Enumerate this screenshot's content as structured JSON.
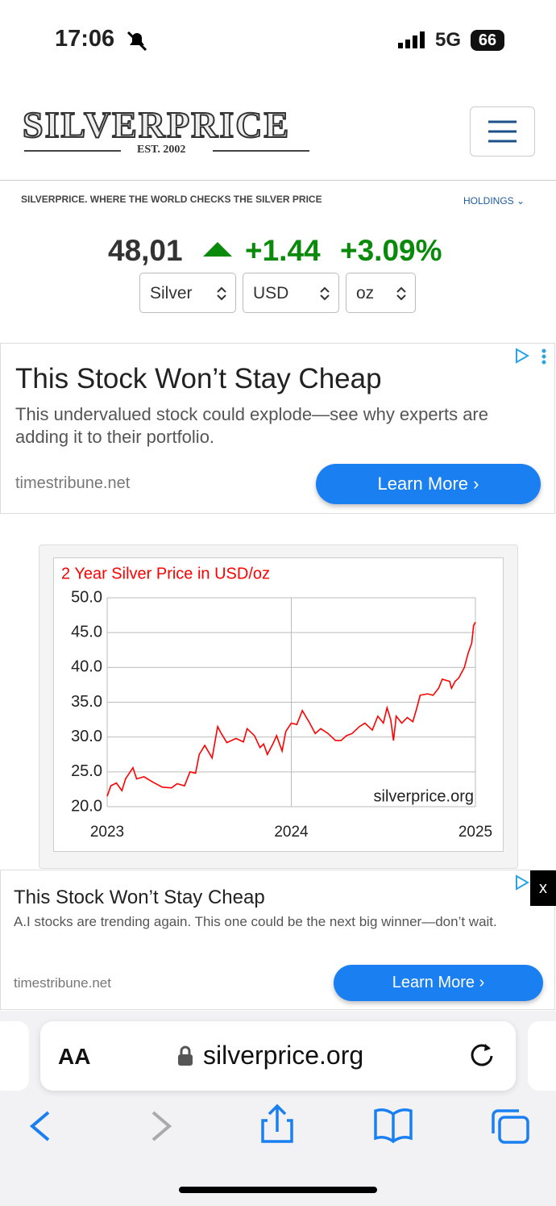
{
  "status_bar": {
    "time": "17:06",
    "network": "5G",
    "battery": "66"
  },
  "header": {
    "logo": "SILVERPRICE",
    "established": "EST. 2002"
  },
  "tagline": {
    "text": "SILVERPRICE. WHERE THE WORLD CHECKS THE SILVER PRICE",
    "holdings": "HOLDINGS"
  },
  "price": {
    "value": "48,01",
    "change": "+1.44",
    "change_pct": "+3.09%"
  },
  "selectors": [
    "Silver",
    "USD",
    "oz"
  ],
  "ad_1": {
    "title": "This Stock Won’t Stay Cheap",
    "body": "This undervalued stock could explode—see why experts are adding it to their portfolio.",
    "domain": "timestribune.net",
    "button": "Learn More"
  },
  "chart_data": {
    "type": "line",
    "title": "2 Year Silver Price in USD/oz",
    "watermark": "silverprice.org",
    "color": "#ff0000",
    "grid": true,
    "x": [
      2023.0,
      2023.02,
      2023.05,
      2023.08,
      2023.1,
      2023.14,
      2023.16,
      2023.2,
      2023.25,
      2023.3,
      2023.35,
      2023.38,
      2023.42,
      2023.45,
      2023.48,
      2023.5,
      2023.53,
      2023.57,
      2023.6,
      2023.62,
      2023.65,
      2023.7,
      2023.74,
      2023.76,
      2023.8,
      2023.83,
      2023.85,
      2023.87,
      2023.9,
      2023.92,
      2023.95,
      2023.97,
      2024.0,
      2024.03,
      2024.06,
      2024.1,
      2024.13,
      2024.16,
      2024.2,
      2024.24,
      2024.27,
      2024.3,
      2024.33,
      2024.37,
      2024.4,
      2024.44,
      2024.47,
      2024.5,
      2024.52,
      2024.54,
      2024.555,
      2024.57,
      2024.6,
      2024.63,
      2024.66,
      2024.68,
      2024.7,
      2024.74,
      2024.77,
      2024.8,
      2024.82,
      2024.86,
      2024.87,
      2024.89,
      2024.91,
      2024.94,
      2024.96,
      2024.98,
      2024.99,
      2025.0
    ],
    "values": [
      21.5,
      23.0,
      23.4,
      22.3,
      24.0,
      25.6,
      24.0,
      24.3,
      23.5,
      22.8,
      22.7,
      23.3,
      23.0,
      25.0,
      24.8,
      27.5,
      28.8,
      27.0,
      31.5,
      30.5,
      29.2,
      29.8,
      29.3,
      31.2,
      30.2,
      28.5,
      29.0,
      27.5,
      29.0,
      30.2,
      28.0,
      30.8,
      32.0,
      31.8,
      33.8,
      32.0,
      30.5,
      31.2,
      30.5,
      29.5,
      29.5,
      30.2,
      30.5,
      31.5,
      32.0,
      31.0,
      33.0,
      32.0,
      34.2,
      32.5,
      29.5,
      33.0,
      32.0,
      32.8,
      32.2,
      34.0,
      36.0,
      36.2,
      36.0,
      37.0,
      38.3,
      38.0,
      37.0,
      38.0,
      38.5,
      40.0,
      42.0,
      43.5,
      46.0,
      46.5
    ],
    "xlim": [
      2023,
      2025
    ],
    "xticks": [
      2023,
      2024,
      2025
    ],
    "ylim": [
      20,
      50
    ],
    "yticks": [
      {
        "value": 50,
        "label": "50.0"
      },
      {
        "value": 45,
        "label": "45.0"
      },
      {
        "value": 40,
        "label": "40.0"
      },
      {
        "value": 35,
        "label": "35.0"
      },
      {
        "value": 30,
        "label": "30.0"
      },
      {
        "value": 25,
        "label": "25.0"
      },
      {
        "value": 20,
        "label": "20.0"
      }
    ]
  },
  "ad_2": {
    "title": "This Stock Won’t Stay Cheap",
    "body": "A.I stocks are trending again. This one could be the next big winner—don’t wait.",
    "domain": "timestribune.net",
    "button": "Learn More",
    "close": "x"
  },
  "browser": {
    "text_size": "AA",
    "url": "silverprice.org"
  }
}
